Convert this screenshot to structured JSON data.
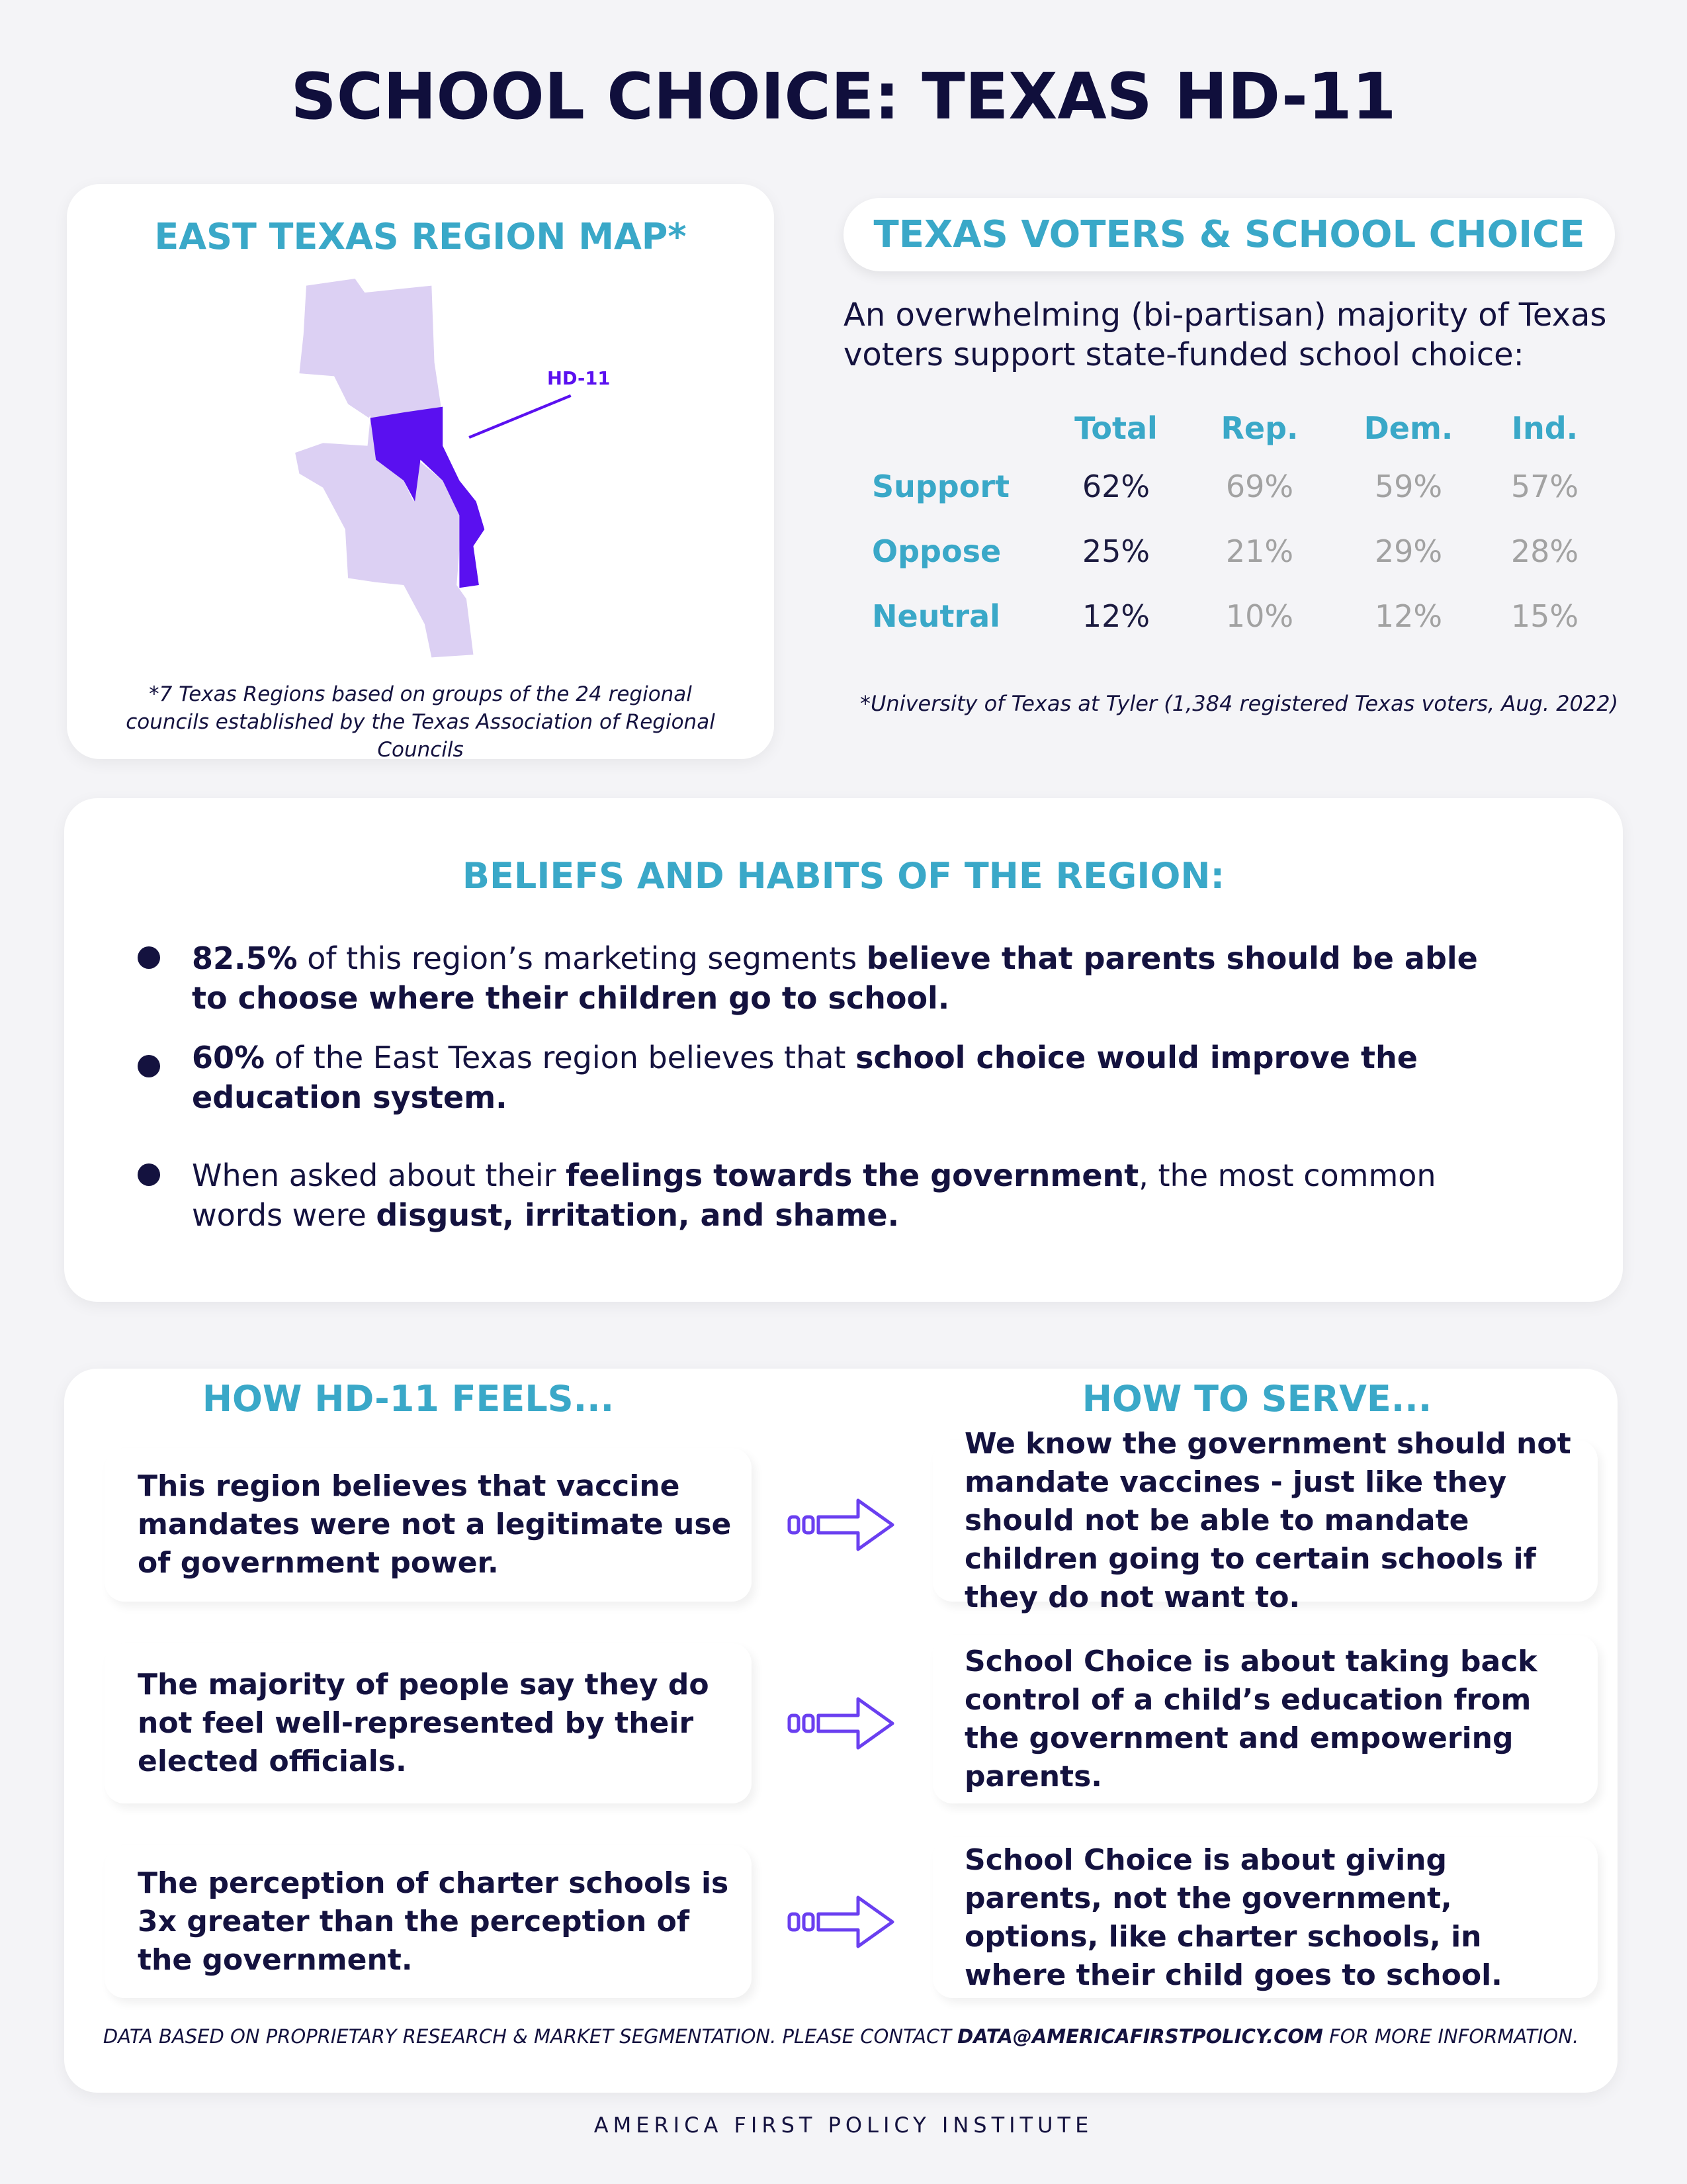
{
  "title": "SCHOOL CHOICE: TEXAS HD-11",
  "map": {
    "title": "EAST TEXAS REGION MAP*",
    "label": "HD-11",
    "note": "*7 Texas Regions based on groups of the 24 regional councils established by the Texas Association of Regional Councils"
  },
  "voters": {
    "title": "TEXAS VOTERS & SCHOOL CHOICE",
    "intro": "An overwhelming (bi-partisan) majority of Texas voters support state-funded school choice:",
    "table": {
      "columns": [
        "Total",
        "Rep.",
        "Dem.",
        "Ind."
      ],
      "rows": [
        {
          "label": "Support",
          "cells": [
            "62%",
            "69%",
            "59%",
            "57%"
          ]
        },
        {
          "label": "Oppose",
          "cells": [
            "25%",
            "21%",
            "29%",
            "28%"
          ]
        },
        {
          "label": "Neutral",
          "cells": [
            "12%",
            "10%",
            "12%",
            "15%"
          ]
        }
      ]
    },
    "source": "*University of Texas at Tyler (1,384 registered Texas voters, Aug. 2022)"
  },
  "beliefs": {
    "title": "BELIEFS AND HABITS OF THE REGION:",
    "items": [
      [
        {
          "text": "82.5%",
          "bold": true
        },
        {
          "text": " of this region’s marketing segments ",
          "bold": false
        },
        {
          "text": "believe that parents should be able to choose where their children go to school.",
          "bold": true
        }
      ],
      [
        {
          "text": "60%",
          "bold": true
        },
        {
          "text": " of the East Texas region believes that ",
          "bold": false
        },
        {
          "text": "school choice would improve the education system.",
          "bold": true
        }
      ],
      [
        {
          "text": "When asked about their ",
          "bold": false
        },
        {
          "text": "feelings towards the government",
          "bold": true
        },
        {
          "text": ", the most common words were ",
          "bold": false
        },
        {
          "text": "disgust, irritation, and shame.",
          "bold": true
        }
      ]
    ]
  },
  "feels": {
    "title": "HOW HD-11 FEELS...",
    "items": [
      "This region believes that vaccine mandates were not a legitimate use of government power.",
      "The majority of people say they do not feel well-represented by their elected officials.",
      "The perception of charter schools is 3x greater than the perception of the government."
    ]
  },
  "serve": {
    "title": "HOW TO SERVE...",
    "items": [
      "We know the government should not mandate vaccines - just like they should not be able to mandate children going to certain schools if they do not want to.",
      "School Choice is about taking back control of a child’s education from the government and empowering parents.",
      "School Choice is about giving parents, not the government, options, like charter schools, in where their child goes to school."
    ]
  },
  "footer": {
    "note": [
      {
        "text": "DATA BASED ON PROPRIETARY RESEARCH & MARKET SEGMENTATION. PLEASE CONTACT ",
        "bold": false
      },
      {
        "text": "DATA@AMERICAFIRSTPOLICY.COM",
        "bold": true
      },
      {
        "text": " FOR MORE INFORMATION.",
        "bold": false
      }
    ],
    "org": "AMERICA FIRST POLICY INSTITUTE"
  }
}
